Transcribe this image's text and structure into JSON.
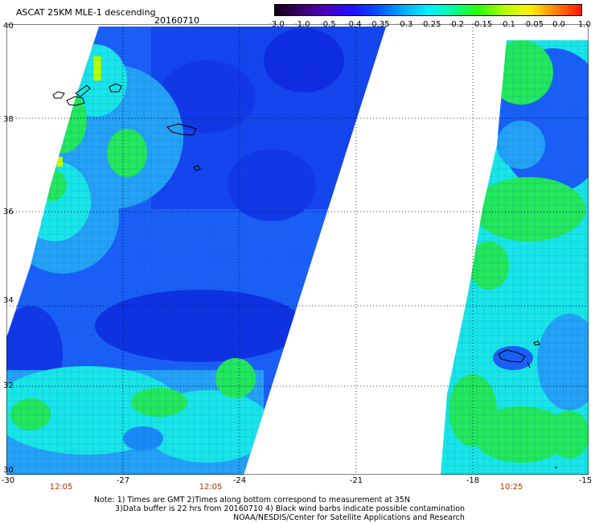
{
  "header": {
    "title": "ASCAT 25KM MLE-1 descending",
    "date": "20160710"
  },
  "colorbar": {
    "labels": [
      "-3.0",
      "-1.0",
      "-0.5",
      "-0.4",
      "-0.35",
      "-0.3",
      "-0.25",
      "-0.2",
      "-0.15",
      "-0.1",
      "-0.05",
      "0.0",
      "1.0"
    ],
    "colors": [
      "#120015",
      "#3a0068",
      "#4d00c0",
      "#1f10ff",
      "#0050ff",
      "#00a8ff",
      "#00f0ff",
      "#00ff9a",
      "#2cff00",
      "#b8ff00",
      "#fff000",
      "#ff8000",
      "#ff1800"
    ]
  },
  "map": {
    "lon_labels": [
      "-30",
      "-27",
      "-24",
      "-21",
      "-18",
      "-15"
    ],
    "lat_labels": [
      "40",
      "38",
      "36",
      "34",
      "32",
      "30"
    ],
    "time_labels": [
      "12:05",
      "12:05",
      "10:25"
    ],
    "palette": {
      "deep_blue": "#1238e6",
      "blue": "#1a60f5",
      "light_blue": "#24a2f4",
      "cyan": "#18e6e6",
      "green": "#22e85a",
      "lime": "#b4ff00"
    }
  },
  "notes": {
    "line1": "Note: 1) Times are GMT 2)Times along bottom correspond to measurement at 35N",
    "line2": "3)Data buffer is 22 hrs from 20160710 4) Black wind barbs indicate possible contamination",
    "line3": "NOAA/NESDIS/Center for Satellite Applications and Research"
  }
}
